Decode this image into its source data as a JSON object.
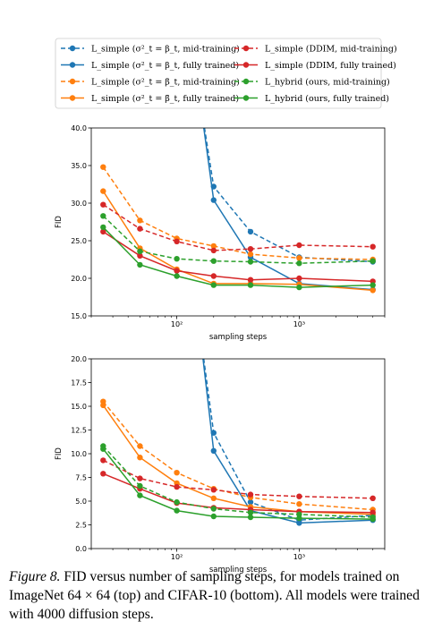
{
  "legend": {
    "entries": [
      {
        "label": "L_simple (σ²_t = β_t, mid-training)",
        "color": "#1f77b4",
        "dashed": true
      },
      {
        "label": "L_simple (σ²_t = β_t, fully trained)",
        "color": "#1f77b4",
        "dashed": false
      },
      {
        "label": "L_simple (σ²_t = β̃_t, mid-training)",
        "color": "#ff7f0e",
        "dashed": true
      },
      {
        "label": "L_simple (σ²_t = β̃_t, fully trained)",
        "color": "#ff7f0e",
        "dashed": false
      },
      {
        "label": "L_simple (DDIM, mid-training)",
        "color": "#d62728",
        "dashed": true
      },
      {
        "label": "L_simple (DDIM, fully trained)",
        "color": "#d62728",
        "dashed": false
      },
      {
        "label": "L_hybrid (ours, mid-training)",
        "color": "#2ca02c",
        "dashed": true
      },
      {
        "label": "L_hybrid (ours, fully trained)",
        "color": "#2ca02c",
        "dashed": false
      }
    ]
  },
  "chart_data": [
    {
      "type": "line",
      "xlabel": "sampling steps",
      "ylabel": "FID",
      "xscale": "log",
      "ylim": [
        15,
        40
      ],
      "yticks": [
        "15.0",
        "20.0",
        "25.0",
        "30.0",
        "35.0",
        "40.0"
      ],
      "xticks": [
        {
          "value": 100,
          "label": "10²"
        },
        {
          "value": 1000,
          "label": "10³"
        }
      ],
      "x": [
        25,
        50,
        100,
        200,
        400,
        1000,
        4000
      ],
      "series": [
        {
          "name": "L_simple (σ²_t = β_t, mid-training)",
          "values": [
            null,
            null,
            null,
            32.2,
            26.2,
            22.8,
            22.2
          ]
        },
        {
          "name": "L_simple (σ²_t = β_t, fully trained)",
          "values": [
            null,
            null,
            null,
            30.4,
            22.8,
            19.3,
            18.5
          ]
        },
        {
          "name": "L_simple (σ²_t = β̃_t, mid-training)",
          "values": [
            34.8,
            27.7,
            25.3,
            24.3,
            23.2,
            22.7,
            22.5
          ]
        },
        {
          "name": "L_simple (σ²_t = β̃_t, fully trained)",
          "values": [
            31.6,
            24.0,
            21.2,
            19.3,
            19.3,
            19.2,
            18.4
          ]
        },
        {
          "name": "L_simple (DDIM, mid-training)",
          "values": [
            29.8,
            26.6,
            24.9,
            23.7,
            23.9,
            24.4,
            24.2
          ]
        },
        {
          "name": "L_simple (DDIM, fully trained)",
          "values": [
            26.2,
            23.0,
            21.0,
            20.3,
            19.8,
            20.0,
            19.6
          ]
        },
        {
          "name": "L_hybrid (ours, mid-training)",
          "values": [
            28.3,
            23.6,
            22.6,
            22.3,
            22.2,
            22.0,
            22.3
          ]
        },
        {
          "name": "L_hybrid (ours, fully trained)",
          "values": [
            26.8,
            21.8,
            20.3,
            19.1,
            19.1,
            18.8,
            19.1
          ]
        }
      ]
    },
    {
      "type": "line",
      "xlabel": "sampling steps",
      "ylabel": "FID",
      "xscale": "log",
      "ylim": [
        0,
        20
      ],
      "yticks": [
        "0.0",
        "2.5",
        "5.0",
        "7.5",
        "10.0",
        "12.5",
        "15.0",
        "17.5",
        "20.0"
      ],
      "xticks": [
        {
          "value": 100,
          "label": "10²"
        },
        {
          "value": 1000,
          "label": "10³"
        }
      ],
      "x": [
        25,
        50,
        100,
        200,
        400,
        1000,
        4000
      ],
      "series": [
        {
          "name": "L_simple (σ²_t = β_t, mid-training)",
          "values": [
            null,
            null,
            null,
            12.2,
            4.9,
            3.0,
            3.5
          ]
        },
        {
          "name": "L_simple (σ²_t = β_t, fully trained)",
          "values": [
            null,
            null,
            null,
            10.3,
            4.0,
            2.7,
            3.0
          ]
        },
        {
          "name": "L_simple (σ²_t = β̃_t, mid-training)",
          "values": [
            15.5,
            10.8,
            8.0,
            6.3,
            5.4,
            4.7,
            4.1
          ]
        },
        {
          "name": "L_simple (σ²_t = β̃_t, fully trained)",
          "values": [
            15.1,
            9.6,
            6.9,
            5.3,
            4.4,
            3.9,
            3.6
          ]
        },
        {
          "name": "L_simple (DDIM, mid-training)",
          "values": [
            9.3,
            7.4,
            6.5,
            6.2,
            5.7,
            5.5,
            5.3
          ]
        },
        {
          "name": "L_simple (DDIM, fully trained)",
          "values": [
            7.9,
            6.3,
            4.8,
            4.3,
            4.1,
            3.9,
            3.8
          ]
        },
        {
          "name": "L_hybrid (ours, mid-training)",
          "values": [
            10.8,
            6.6,
            4.9,
            4.2,
            3.8,
            3.6,
            3.3
          ]
        },
        {
          "name": "L_hybrid (ours, fully trained)",
          "values": [
            10.5,
            5.6,
            4.0,
            3.4,
            3.3,
            3.2,
            3.1
          ]
        }
      ]
    }
  ],
  "caption": {
    "label": "Figure 8.",
    "text": "FID versus number of sampling steps, for models trained on ImageNet 64 × 64 (top) and CIFAR-10 (bottom). All models were trained with 4000 diffusion steps."
  }
}
